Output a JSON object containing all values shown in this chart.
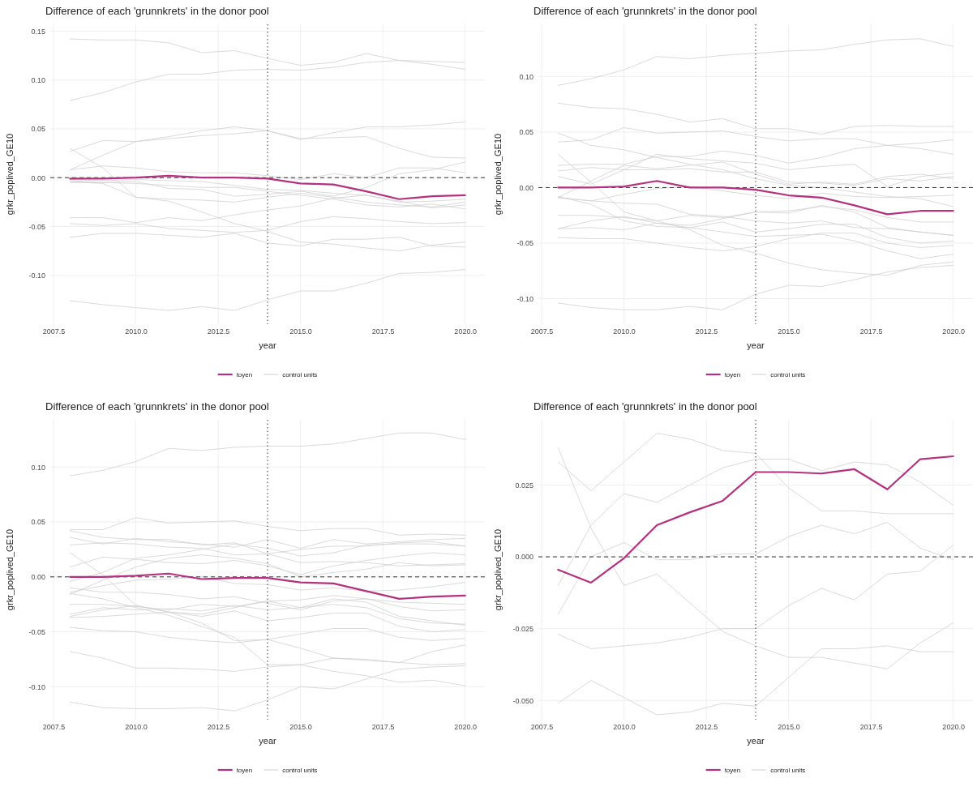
{
  "chart_data": [
    {
      "type": "line",
      "title": "Difference of each 'grunnkrets' in the donor pool",
      "xlabel": "year",
      "ylabel": "grkr_poplived_GE10",
      "x": [
        2008,
        2009,
        2010,
        2011,
        2012,
        2013,
        2014,
        2015,
        2016,
        2017,
        2018,
        2019,
        2020
      ],
      "xlim": [
        2007.4,
        2020.6
      ],
      "ylim": [
        -0.15,
        0.157
      ],
      "xticks": [
        {
          "value": 2007.5,
          "label": "2007.5"
        },
        {
          "value": 2010,
          "label": "2010.0"
        },
        {
          "value": 2012.5,
          "label": "2012.5"
        },
        {
          "value": 2015,
          "label": "2015.0"
        },
        {
          "value": 2017.5,
          "label": "2017.5"
        },
        {
          "value": 2020,
          "label": "2020.0"
        }
      ],
      "yticks": [
        {
          "value": -0.1,
          "label": "-0.10"
        },
        {
          "value": -0.05,
          "label": "-0.05"
        },
        {
          "value": 0,
          "label": "0.00"
        },
        {
          "value": 0.05,
          "label": "0.05"
        },
        {
          "value": 0.1,
          "label": "0.10"
        },
        {
          "value": 0.15,
          "label": "0.15"
        }
      ],
      "grid": true,
      "legend": "bottom",
      "ref_lines": [
        {
          "axis": "y",
          "value": 0,
          "color": "#333333",
          "line_style": "dashed"
        },
        {
          "axis": "x",
          "value": 2014,
          "color": "#333333",
          "line_style": "dotted"
        }
      ],
      "series": [
        {
          "name": "toyen",
          "color": "#b5317f",
          "values": [
            -0.001,
            -0.001,
            0.0,
            0.002,
            0.0,
            0.0,
            -0.001,
            -0.006,
            -0.007,
            -0.014,
            -0.022,
            -0.019,
            -0.018
          ]
        },
        {
          "name": "control units",
          "color": "#d0d0d0",
          "values": [
            0.142,
            0.141,
            0.141,
            0.138,
            0.128,
            0.13,
            0.122,
            0.115,
            0.118,
            0.127,
            0.12,
            0.116,
            0.111
          ]
        },
        {
          "color": "#d0d0d0",
          "values": [
            0.079,
            0.087,
            0.098,
            0.106,
            0.106,
            0.11,
            0.111,
            0.11,
            0.113,
            0.118,
            0.12,
            0.119,
            0.118
          ]
        },
        {
          "color": "#d0d0d0",
          "values": [
            0.027,
            0.038,
            0.037,
            0.042,
            0.048,
            0.052,
            0.048,
            0.039,
            0.046,
            0.052,
            0.052,
            0.054,
            0.057
          ]
        },
        {
          "color": "#d0d0d0",
          "values": [
            0.008,
            0.023,
            0.037,
            0.04,
            0.043,
            0.045,
            0.048,
            0.04,
            0.041,
            0.042,
            0.03,
            0.021,
            0.02
          ]
        },
        {
          "color": "#d0d0d0",
          "values": [
            0.03,
            0.01,
            -0.02,
            -0.024,
            -0.035,
            -0.047,
            -0.055,
            -0.066,
            -0.068,
            -0.072,
            -0.075,
            -0.069,
            -0.066
          ]
        },
        {
          "color": "#d0d0d0",
          "values": [
            0.008,
            0.012,
            0.01,
            0.006,
            0.005,
            0.005,
            0.002,
            -0.002,
            0.004,
            0.0,
            0.01,
            0.01,
            0.005
          ]
        },
        {
          "color": "#d0d0d0",
          "values": [
            -0.003,
            -0.005,
            -0.004,
            -0.011,
            -0.012,
            -0.019,
            -0.017,
            -0.014,
            -0.019,
            -0.01,
            0.004,
            0.008,
            0.016
          ]
        },
        {
          "color": "#d0d0d0",
          "values": [
            -0.004,
            -0.006,
            -0.02,
            -0.022,
            -0.023,
            -0.025,
            -0.02,
            -0.016,
            -0.02,
            -0.025,
            -0.028,
            -0.03,
            -0.025
          ]
        },
        {
          "color": "#d0d0d0",
          "values": [
            -0.002,
            -0.003,
            -0.002,
            -0.003,
            -0.004,
            -0.008,
            -0.012,
            -0.013,
            -0.016,
            -0.018,
            -0.024,
            -0.031,
            -0.028
          ]
        },
        {
          "color": "#d0d0d0",
          "values": [
            -0.041,
            -0.041,
            -0.046,
            -0.041,
            -0.044,
            -0.038,
            -0.033,
            -0.029,
            -0.021,
            -0.018,
            -0.025,
            -0.024,
            -0.022
          ]
        },
        {
          "color": "#d0d0d0",
          "values": [
            -0.047,
            -0.049,
            -0.047,
            -0.052,
            -0.054,
            -0.056,
            -0.054,
            -0.045,
            -0.04,
            -0.042,
            -0.045,
            -0.047,
            -0.046
          ]
        },
        {
          "color": "#d0d0d0",
          "values": [
            -0.061,
            -0.057,
            -0.057,
            -0.059,
            -0.061,
            -0.057,
            -0.067,
            -0.07,
            -0.063,
            -0.063,
            -0.061,
            -0.07,
            -0.071
          ]
        },
        {
          "color": "#d0d0d0",
          "values": [
            -0.126,
            -0.13,
            -0.133,
            -0.136,
            -0.132,
            -0.136,
            -0.125,
            -0.116,
            -0.116,
            -0.108,
            -0.098,
            -0.097,
            -0.094
          ]
        },
        {
          "color": "#d0d0d0",
          "values": [
            -0.005,
            -0.005,
            -0.006,
            -0.008,
            -0.01,
            -0.01,
            -0.014,
            -0.018,
            -0.022,
            -0.028,
            -0.03,
            -0.027,
            -0.032
          ]
        }
      ]
    },
    {
      "type": "line",
      "title": "Difference of each 'grunnkrets' in the donor pool",
      "xlabel": "year",
      "ylabel": "grkr_poplived_GE10",
      "x": [
        2008,
        2009,
        2010,
        2011,
        2012,
        2013,
        2014,
        2015,
        2016,
        2017,
        2018,
        2019,
        2020
      ],
      "xlim": [
        2007.4,
        2020.6
      ],
      "ylim": [
        -0.123,
        0.147
      ],
      "xticks": [
        {
          "value": 2007.5,
          "label": "2007.5"
        },
        {
          "value": 2010,
          "label": "2010.0"
        },
        {
          "value": 2012.5,
          "label": "2012.5"
        },
        {
          "value": 2015,
          "label": "2015.0"
        },
        {
          "value": 2017.5,
          "label": "2017.5"
        },
        {
          "value": 2020,
          "label": "2020.0"
        }
      ],
      "yticks": [
        {
          "value": -0.1,
          "label": "-0.10"
        },
        {
          "value": -0.05,
          "label": "-0.05"
        },
        {
          "value": 0,
          "label": "0.00"
        },
        {
          "value": 0.05,
          "label": "0.05"
        },
        {
          "value": 0.1,
          "label": "0.10"
        }
      ],
      "grid": true,
      "legend": "bottom",
      "ref_lines": [
        {
          "axis": "y",
          "value": 0,
          "color": "#333333",
          "line_style": "dashed"
        },
        {
          "axis": "x",
          "value": 2014,
          "color": "#333333",
          "line_style": "dotted"
        }
      ],
      "series": [
        {
          "name": "toyen",
          "color": "#b5317f",
          "values": [
            0.0,
            0.0,
            0.001,
            0.006,
            0.0,
            0.0,
            -0.002,
            -0.007,
            -0.009,
            -0.016,
            -0.024,
            -0.021,
            -0.021
          ]
        },
        {
          "name": "control units",
          "color": "#d0d0d0",
          "values": [
            0.092,
            0.098,
            0.106,
            0.118,
            0.116,
            0.119,
            0.121,
            0.123,
            0.124,
            0.129,
            0.133,
            0.134,
            0.127
          ]
        },
        {
          "color": "#d0d0d0",
          "values": [
            0.076,
            0.072,
            0.071,
            0.066,
            0.059,
            0.062,
            0.053,
            0.053,
            0.048,
            0.055,
            0.056,
            0.055,
            0.055
          ]
        },
        {
          "color": "#d0d0d0",
          "values": [
            0.041,
            0.043,
            0.054,
            0.049,
            0.05,
            0.051,
            0.046,
            0.042,
            0.044,
            0.044,
            0.038,
            0.04,
            0.043
          ]
        },
        {
          "color": "#d0d0d0",
          "values": [
            0.049,
            0.038,
            0.034,
            0.027,
            0.021,
            0.016,
            0.008,
            0.002,
            0.0,
            -0.004,
            -0.008,
            -0.01,
            -0.017
          ]
        },
        {
          "color": "#d0d0d0",
          "values": [
            0.03,
            0.005,
            -0.022,
            -0.03,
            -0.038,
            -0.052,
            -0.059,
            -0.068,
            -0.074,
            -0.077,
            -0.079,
            -0.07,
            -0.067
          ]
        },
        {
          "color": "#d0d0d0",
          "values": [
            0.02,
            0.021,
            0.021,
            0.028,
            0.028,
            0.033,
            0.029,
            0.022,
            0.027,
            0.035,
            0.038,
            0.035,
            0.03
          ]
        },
        {
          "color": "#d0d0d0",
          "values": [
            0.015,
            0.018,
            0.016,
            0.016,
            0.017,
            0.014,
            0.014,
            0.005,
            0.004,
            0.002,
            0.008,
            0.006,
            0.01
          ]
        },
        {
          "color": "#d0d0d0",
          "values": [
            0.01,
            0.003,
            0.016,
            0.03,
            0.026,
            0.024,
            0.022,
            0.016,
            0.019,
            0.021,
            0.001,
            0.01,
            0.013
          ]
        },
        {
          "color": "#d0d0d0",
          "values": [
            -0.009,
            0.006,
            0.02,
            0.017,
            0.02,
            0.023,
            0.012,
            0.003,
            0.005,
            0.003,
            0.01,
            0.012,
            0.008
          ]
        },
        {
          "color": "#d0d0d0",
          "values": [
            -0.009,
            -0.012,
            -0.006,
            -0.001,
            0.001,
            -0.003,
            -0.007,
            -0.01,
            -0.005,
            -0.008,
            -0.009,
            -0.008,
            -0.007
          ]
        },
        {
          "color": "#d0d0d0",
          "values": [
            -0.025,
            -0.025,
            -0.027,
            -0.03,
            -0.025,
            -0.027,
            -0.022,
            -0.023,
            -0.016,
            -0.022,
            -0.036,
            -0.04,
            -0.043
          ]
        },
        {
          "color": "#d0d0d0",
          "values": [
            -0.037,
            -0.03,
            -0.026,
            -0.032,
            -0.034,
            -0.028,
            -0.022,
            -0.021,
            -0.017,
            -0.02,
            -0.027,
            -0.031,
            -0.031
          ]
        },
        {
          "color": "#d0d0d0",
          "values": [
            -0.037,
            -0.036,
            -0.038,
            -0.032,
            -0.036,
            -0.031,
            -0.04,
            -0.037,
            -0.033,
            -0.033,
            -0.045,
            -0.05,
            -0.048
          ]
        },
        {
          "color": "#d0d0d0",
          "values": [
            -0.045,
            -0.046,
            -0.046,
            -0.05,
            -0.054,
            -0.057,
            -0.053,
            -0.046,
            -0.041,
            -0.041,
            -0.05,
            -0.054,
            -0.052
          ]
        },
        {
          "color": "#d0d0d0",
          "values": [
            -0.008,
            -0.015,
            -0.03,
            -0.035,
            -0.036,
            -0.04,
            -0.044,
            -0.043,
            -0.042,
            -0.048,
            -0.057,
            -0.064,
            -0.06
          ]
        },
        {
          "color": "#d0d0d0",
          "values": [
            -0.104,
            -0.108,
            -0.11,
            -0.11,
            -0.107,
            -0.11,
            -0.096,
            -0.088,
            -0.089,
            -0.083,
            -0.076,
            -0.072,
            -0.07
          ]
        },
        {
          "color": "#d0d0d0",
          "values": [
            -0.009,
            -0.012,
            -0.014,
            -0.015,
            -0.024,
            -0.026,
            -0.03,
            -0.032,
            -0.03,
            -0.036,
            -0.037,
            -0.04,
            -0.043
          ]
        }
      ]
    },
    {
      "type": "line",
      "title": "Difference of each 'grunnkrets' in the donor pool",
      "xlabel": "year",
      "ylabel": "grkr_poplived_GE10",
      "x": [
        2008,
        2009,
        2010,
        2011,
        2012,
        2013,
        2014,
        2015,
        2016,
        2017,
        2018,
        2019,
        2020
      ],
      "xlim": [
        2007.4,
        2020.6
      ],
      "ylim": [
        -0.13,
        0.143
      ],
      "xticks": [
        {
          "value": 2007.5,
          "label": "2007.5"
        },
        {
          "value": 2010,
          "label": "2010.0"
        },
        {
          "value": 2012.5,
          "label": "2012.5"
        },
        {
          "value": 2015,
          "label": "2015.0"
        },
        {
          "value": 2017.5,
          "label": "2017.5"
        },
        {
          "value": 2020,
          "label": "2020.0"
        }
      ],
      "yticks": [
        {
          "value": -0.1,
          "label": "-0.10"
        },
        {
          "value": -0.05,
          "label": "-0.05"
        },
        {
          "value": 0,
          "label": "0.00"
        },
        {
          "value": 0.05,
          "label": "0.05"
        },
        {
          "value": 0.1,
          "label": "0.10"
        }
      ],
      "grid": true,
      "legend": "bottom",
      "ref_lines": [
        {
          "axis": "y",
          "value": 0,
          "color": "#333333",
          "line_style": "dashed"
        },
        {
          "axis": "x",
          "value": 2014,
          "color": "#333333",
          "line_style": "dotted"
        }
      ],
      "series": [
        {
          "name": "toyen",
          "color": "#b5317f",
          "values": [
            0.0,
            0.0,
            0.001,
            0.003,
            -0.002,
            -0.001,
            -0.001,
            -0.005,
            -0.006,
            -0.013,
            -0.02,
            -0.018,
            -0.017
          ]
        },
        {
          "name": "control units",
          "color": "#d0d0d0",
          "values": [
            0.092,
            0.097,
            0.105,
            0.117,
            0.115,
            0.118,
            0.119,
            0.119,
            0.121,
            0.126,
            0.131,
            0.131,
            0.125
          ]
        },
        {
          "color": "#d0d0d0",
          "values": [
            0.043,
            0.043,
            0.054,
            0.049,
            0.05,
            0.051,
            0.046,
            0.042,
            0.044,
            0.044,
            0.038,
            0.039,
            0.038
          ]
        },
        {
          "color": "#d0d0d0",
          "values": [
            0.042,
            0.036,
            0.034,
            0.034,
            0.029,
            0.031,
            0.021,
            0.013,
            0.014,
            0.013,
            0.01,
            0.011,
            0.012
          ]
        },
        {
          "color": "#d0d0d0",
          "values": [
            0.036,
            0.03,
            0.035,
            0.032,
            0.03,
            0.027,
            0.034,
            0.026,
            0.034,
            0.03,
            0.032,
            0.034,
            0.035
          ]
        },
        {
          "color": "#d0d0d0",
          "values": [
            0.022,
            0.002,
            -0.026,
            -0.032,
            -0.042,
            -0.058,
            -0.057,
            -0.065,
            -0.074,
            -0.076,
            -0.078,
            -0.068,
            -0.062
          ]
        },
        {
          "color": "#d0d0d0",
          "values": [
            0.009,
            0.018,
            0.016,
            0.013,
            0.012,
            0.015,
            0.01,
            0.002,
            0.01,
            0.015,
            0.019,
            0.022,
            0.02
          ]
        },
        {
          "color": "#d0d0d0",
          "values": [
            -0.004,
            0.004,
            0.017,
            0.02,
            0.025,
            0.03,
            0.026,
            0.019,
            0.022,
            0.029,
            0.03,
            0.03,
            0.028
          ]
        },
        {
          "color": "#d0d0d0",
          "values": [
            -0.016,
            -0.003,
            0.009,
            0.017,
            0.02,
            0.017,
            0.012,
            0.0,
            0.004,
            0.007,
            0.013,
            0.01,
            0.011
          ]
        },
        {
          "color": "#d0d0d0",
          "values": [
            -0.014,
            -0.008,
            -0.003,
            -0.002,
            0.0,
            -0.006,
            -0.007,
            -0.012,
            -0.01,
            -0.013,
            -0.012,
            -0.009,
            -0.005
          ]
        },
        {
          "color": "#d0d0d0",
          "values": [
            -0.025,
            -0.025,
            -0.027,
            -0.03,
            -0.025,
            -0.027,
            -0.022,
            -0.028,
            -0.02,
            -0.023,
            -0.036,
            -0.04,
            -0.044
          ]
        },
        {
          "color": "#d0d0d0",
          "values": [
            -0.036,
            -0.03,
            -0.026,
            -0.032,
            -0.034,
            -0.028,
            -0.022,
            -0.021,
            -0.017,
            -0.02,
            -0.027,
            -0.031,
            -0.03
          ]
        },
        {
          "color": "#d0d0d0",
          "values": [
            -0.037,
            -0.036,
            -0.034,
            -0.032,
            -0.036,
            -0.031,
            -0.04,
            -0.037,
            -0.033,
            -0.033,
            -0.045,
            -0.05,
            -0.048
          ]
        },
        {
          "color": "#d0d0d0",
          "values": [
            -0.046,
            -0.049,
            -0.05,
            -0.055,
            -0.058,
            -0.06,
            -0.057,
            -0.052,
            -0.047,
            -0.047,
            -0.055,
            -0.058,
            -0.056
          ]
        },
        {
          "color": "#d0d0d0",
          "values": [
            -0.015,
            -0.02,
            -0.028,
            -0.035,
            -0.045,
            -0.055,
            -0.08,
            -0.08,
            -0.074,
            -0.075,
            -0.078,
            -0.08,
            -0.079
          ]
        },
        {
          "color": "#d0d0d0",
          "values": [
            -0.068,
            -0.074,
            -0.083,
            -0.083,
            -0.084,
            -0.086,
            -0.082,
            -0.08,
            -0.086,
            -0.09,
            -0.096,
            -0.094,
            -0.099
          ]
        },
        {
          "color": "#d0d0d0",
          "values": [
            -0.114,
            -0.119,
            -0.12,
            -0.12,
            -0.119,
            -0.122,
            -0.112,
            -0.1,
            -0.102,
            -0.093,
            -0.084,
            -0.082,
            -0.081
          ]
        },
        {
          "color": "#d0d0d0",
          "values": [
            -0.034,
            -0.028,
            -0.03,
            -0.029,
            -0.031,
            -0.026,
            -0.03,
            -0.028,
            -0.025,
            -0.028,
            -0.038,
            -0.042,
            -0.043
          ]
        },
        {
          "color": "#d0d0d0",
          "values": [
            -0.01,
            -0.014,
            -0.014,
            -0.016,
            -0.02,
            -0.018,
            -0.024,
            -0.03,
            -0.022,
            -0.02,
            -0.023,
            -0.024,
            -0.025
          ]
        },
        {
          "color": "#d0d0d0",
          "values": [
            0.029,
            0.031,
            0.03,
            0.027,
            0.026,
            0.02,
            0.021,
            0.025,
            0.028,
            0.028,
            0.031,
            0.032,
            0.028
          ]
        }
      ]
    },
    {
      "type": "line",
      "title": "Difference of each 'grunnkrets' in the donor pool",
      "xlabel": "year",
      "ylabel": "grkr_poplived_GE10",
      "x": [
        2008,
        2009,
        2010,
        2011,
        2012,
        2013,
        2014,
        2015,
        2016,
        2017,
        2018,
        2019,
        2020
      ],
      "xlim": [
        2007.4,
        2020.6
      ],
      "ylim": [
        -0.0567,
        0.0477
      ],
      "xticks": [
        {
          "value": 2007.5,
          "label": "2007.5"
        },
        {
          "value": 2010,
          "label": "2010.0"
        },
        {
          "value": 2012.5,
          "label": "2012.5"
        },
        {
          "value": 2015,
          "label": "2015.0"
        },
        {
          "value": 2017.5,
          "label": "2017.5"
        },
        {
          "value": 2020,
          "label": "2020.0"
        }
      ],
      "yticks": [
        {
          "value": -0.05,
          "label": "-0.050"
        },
        {
          "value": -0.025,
          "label": "-0.025"
        },
        {
          "value": 0,
          "label": "0.000"
        },
        {
          "value": 0.025,
          "label": "0.025"
        }
      ],
      "grid": true,
      "legend": "bottom",
      "ref_lines": [
        {
          "axis": "y",
          "value": 0,
          "color": "#333333",
          "line_style": "dashed"
        },
        {
          "axis": "x",
          "value": 2014,
          "color": "#333333",
          "line_style": "dotted"
        }
      ],
      "series": [
        {
          "name": "toyen",
          "color": "#b5317f",
          "values": [
            -0.0045,
            -0.009,
            -0.0005,
            0.011,
            0.0155,
            0.0195,
            0.0295,
            0.0295,
            0.029,
            0.0305,
            0.0235,
            0.034,
            0.035
          ]
        },
        {
          "name": "control units",
          "color": "#d0d0d0",
          "values": [
            0.038,
            0.01,
            -0.01,
            -0.006,
            -0.016,
            -0.026,
            -0.031,
            -0.035,
            -0.035,
            -0.037,
            -0.039,
            -0.03,
            -0.023
          ]
        },
        {
          "color": "#d0d0d0",
          "values": [
            0.033,
            0.023,
            0.033,
            0.043,
            0.041,
            0.037,
            0.036,
            0.024,
            0.016,
            0.016,
            0.015,
            0.015,
            0.015
          ]
        },
        {
          "color": "#d0d0d0",
          "values": [
            -0.01,
            0.011,
            0.022,
            0.019,
            0.025,
            0.031,
            0.034,
            0.034,
            0.03,
            0.033,
            0.032,
            0.026,
            0.018
          ]
        },
        {
          "color": "#d0d0d0",
          "values": [
            -0.02,
            0.0,
            0.005,
            -0.001,
            -0.001,
            0.001,
            0.001,
            0.007,
            0.011,
            0.008,
            0.012,
            0.003,
            -0.001
          ]
        },
        {
          "color": "#d0d0d0",
          "values": [
            -0.027,
            -0.032,
            -0.031,
            -0.03,
            -0.028,
            -0.025,
            -0.025,
            -0.017,
            -0.011,
            -0.015,
            -0.006,
            -0.005,
            0.004
          ]
        },
        {
          "color": "#d0d0d0",
          "values": [
            -0.051,
            -0.043,
            -0.049,
            -0.055,
            -0.054,
            -0.051,
            -0.052,
            -0.042,
            -0.032,
            -0.032,
            -0.031,
            -0.033,
            -0.033
          ]
        }
      ]
    }
  ]
}
